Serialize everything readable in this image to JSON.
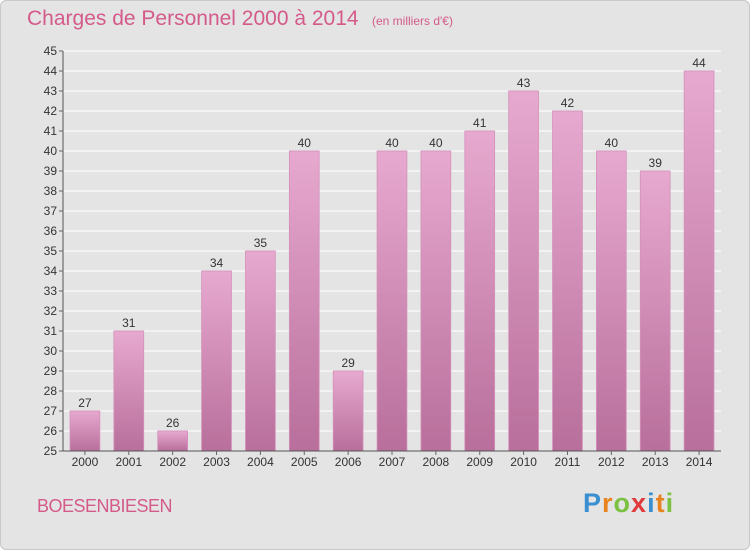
{
  "header": {
    "title": "Charges de Personnel 2000 à 2014",
    "subtitle": "(en milliers d'€)"
  },
  "footer": {
    "place": "BOESENBIESEN",
    "logo_letters": [
      "P",
      "r",
      "o",
      "x",
      "i",
      "t",
      "i"
    ],
    "logo_colors": [
      "#3a8fd0",
      "#e8831f",
      "#7cc142",
      "#e03a3a",
      "#3a8fd0",
      "#e8831f",
      "#7cc142"
    ]
  },
  "colors": {
    "bar_top": "#e7a9cf",
    "bar_bottom": "#b86f9b",
    "grid": "#ffffff",
    "text": "#333333"
  },
  "chart_data": {
    "type": "bar",
    "title": "Charges de Personnel 2000 à 2014",
    "subtitle": "(en milliers d'€)",
    "categories": [
      "2000",
      "2001",
      "2002",
      "2003",
      "2004",
      "2005",
      "2006",
      "2007",
      "2008",
      "2009",
      "2010",
      "2011",
      "2012",
      "2013",
      "2014"
    ],
    "values": [
      27,
      31,
      26,
      34,
      35,
      40,
      29,
      40,
      40,
      41,
      43,
      42,
      40,
      39,
      44
    ],
    "ylim": [
      25,
      45
    ],
    "yticks": [
      25,
      26,
      27,
      28,
      29,
      30,
      31,
      32,
      33,
      34,
      35,
      36,
      37,
      38,
      39,
      40,
      41,
      42,
      43,
      44,
      45
    ],
    "grid": true,
    "data_labels": true
  }
}
